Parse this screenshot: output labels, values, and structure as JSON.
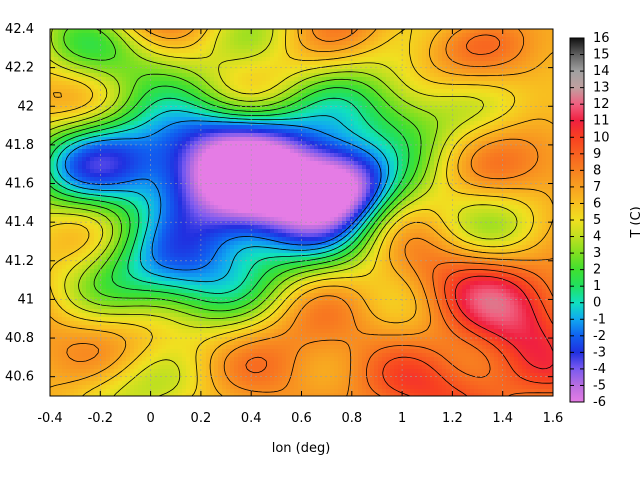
{
  "chart_data": {
    "type": "heatmap",
    "title": "",
    "xlabel": "lon (deg)",
    "ylabel": "",
    "colorbar_label": "T (C)",
    "xlim": [
      -0.4,
      1.6
    ],
    "ylim": [
      40.5,
      42.4
    ],
    "x_ticks": [
      "-0.4",
      "-0.2",
      "0",
      "0.2",
      "0.4",
      "0.6",
      "0.8",
      "1",
      "1.2",
      "1.4",
      "1.6"
    ],
    "y_ticks": [
      "40.6",
      "40.8",
      "41",
      "41.2",
      "41.4",
      "41.6",
      "41.8",
      "42",
      "42.2",
      "42.4"
    ],
    "colorbar_ticks": [
      "-6",
      "-5",
      "-4",
      "-3",
      "-2",
      "-1",
      "0",
      "1",
      "2",
      "3",
      "4",
      "5",
      "6",
      "7",
      "8",
      "9",
      "10",
      "11",
      "12",
      "13",
      "14",
      "15",
      "16"
    ],
    "colorbar_range": [
      -6,
      16
    ],
    "grid": true,
    "contour_lines": true,
    "colormap_stops": [
      {
        "value": -6,
        "color": "#e57ce5"
      },
      {
        "value": -5,
        "color": "#b86ee0"
      },
      {
        "value": -4,
        "color": "#7a5af0"
      },
      {
        "value": -3,
        "color": "#2030e0"
      },
      {
        "value": -2,
        "color": "#1060f0"
      },
      {
        "value": -1,
        "color": "#10a8f0"
      },
      {
        "value": 0,
        "color": "#10e0c0"
      },
      {
        "value": 1,
        "color": "#20e060"
      },
      {
        "value": 2,
        "color": "#40e030"
      },
      {
        "value": 3,
        "color": "#80e020"
      },
      {
        "value": 4,
        "color": "#c0e020"
      },
      {
        "value": 5,
        "color": "#f0e020"
      },
      {
        "value": 6,
        "color": "#f8c020"
      },
      {
        "value": 7,
        "color": "#f8a020"
      },
      {
        "value": 8,
        "color": "#f88020"
      },
      {
        "value": 9,
        "color": "#f86020"
      },
      {
        "value": 10,
        "color": "#f84020"
      },
      {
        "value": 11,
        "color": "#f02040"
      },
      {
        "value": 12,
        "color": "#f06080"
      },
      {
        "value": 13,
        "color": "#c0a0a0"
      },
      {
        "value": 14,
        "color": "#a0a0a0"
      },
      {
        "value": 15,
        "color": "#606060"
      },
      {
        "value": 16,
        "color": "#101010"
      }
    ],
    "field_features": [
      {
        "lon": 0.55,
        "lat": 41.55,
        "value": -1.5,
        "spread": 0.38
      },
      {
        "lon": 0.25,
        "lat": 41.65,
        "value": -0.5,
        "spread": 0.35
      },
      {
        "lon": -0.2,
        "lat": 41.75,
        "value": 0.5,
        "spread": 0.3
      },
      {
        "lon": 0.1,
        "lat": 41.2,
        "value": 1.0,
        "spread": 0.35
      },
      {
        "lon": 0.75,
        "lat": 41.6,
        "value": -2.0,
        "spread": 0.2
      },
      {
        "lon": 0.4,
        "lat": 41.95,
        "value": 3.0,
        "spread": 0.3
      },
      {
        "lon": 1.0,
        "lat": 41.9,
        "value": 3.5,
        "spread": 0.3
      },
      {
        "lon": -0.3,
        "lat": 42.25,
        "value": 4.0,
        "spread": 0.25
      },
      {
        "lon": 1.5,
        "lat": 40.85,
        "value": 10.0,
        "spread": 0.3
      },
      {
        "lon": 1.1,
        "lat": 40.75,
        "value": 9.0,
        "spread": 0.35
      },
      {
        "lon": 0.6,
        "lat": 40.6,
        "value": 8.0,
        "spread": 0.25
      },
      {
        "lon": 1.3,
        "lat": 41.5,
        "value": 7.0,
        "spread": 0.35
      },
      {
        "lon": -0.3,
        "lat": 40.7,
        "value": 6.5,
        "spread": 0.3
      },
      {
        "lon": 0.2,
        "lat": 40.7,
        "value": 6.0,
        "spread": 0.25
      }
    ],
    "base_value": 6.5
  }
}
